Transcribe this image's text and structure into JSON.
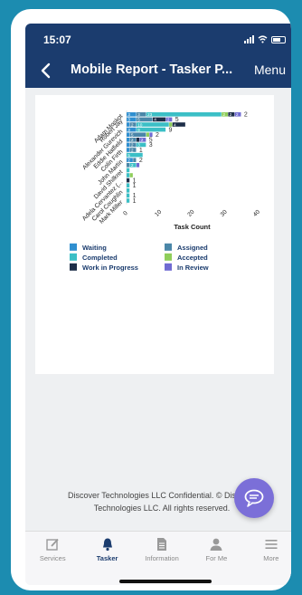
{
  "status_bar": {
    "time": "15:07"
  },
  "nav": {
    "back_icon": "chevron-left-icon",
    "title": "Mobile Report - Tasker P...",
    "menu_label": "Menu"
  },
  "colors": {
    "header": "#1b3c6e",
    "Waiting": "#2f8fd0",
    "Completed": "#3bbfc6",
    "Work in Progress": "#1d2e48",
    "Assigned": "#4a86a8",
    "Accepted": "#8fce5a",
    "In Review": "#6f6bd2"
  },
  "chart_data": {
    "type": "bar",
    "orientation": "horizontal",
    "stacked": true,
    "xlabel": "Task Count",
    "xlim": [
      0,
      40
    ],
    "xticks": [
      "0",
      "10",
      "20",
      "30",
      "40"
    ],
    "categories": [
      "Adam Moskot",
      "Robert Jay",
      "",
      "Alexander Gurevich",
      "",
      "Eddie Hatfield",
      "",
      "Colin Firth",
      "",
      "John Martin",
      "",
      "David Shilkret",
      "",
      "Adela Cervantez (...",
      "",
      "Carol Coughlin",
      "",
      "Mark Miller"
    ],
    "series": [
      {
        "name": "Waiting",
        "values": [
          3,
          3,
          1,
          3,
          1,
          1,
          1,
          1,
          0,
          2,
          0,
          0,
          0,
          0,
          0,
          0,
          0,
          0
        ]
      },
      {
        "name": "Assigned",
        "values": [
          3,
          5,
          2,
          0,
          5,
          2,
          2,
          2,
          0,
          1,
          1,
          0,
          0,
          0,
          0,
          0,
          0,
          0
        ]
      },
      {
        "name": "Completed",
        "values": [
          23,
          0,
          10,
          9,
          0,
          0,
          3,
          0,
          5,
          0,
          2,
          1,
          1,
          0,
          1,
          1,
          1,
          1
        ]
      },
      {
        "name": "Accepted",
        "values": [
          2,
          0,
          1,
          0,
          1,
          0,
          0,
          0,
          0,
          0,
          0,
          0,
          1,
          0,
          0,
          0,
          0,
          0
        ]
      },
      {
        "name": "Work in Progress",
        "values": [
          2,
          4,
          4,
          0,
          0,
          1,
          0,
          0,
          0,
          0,
          0,
          0,
          0,
          1,
          0,
          0,
          0,
          0
        ]
      },
      {
        "name": "In Review",
        "values": [
          2,
          2,
          0,
          0,
          1,
          2,
          0,
          0,
          0,
          0,
          1,
          0,
          0,
          0,
          0,
          0,
          0,
          0
        ]
      }
    ],
    "end_labels": [
      "2",
      "5",
      "",
      "9",
      "2",
      "5",
      "3",
      "1",
      "",
      "2",
      "",
      "",
      "",
      "1",
      "1",
      "",
      "1",
      "1"
    ],
    "legend_placement": "bottom"
  },
  "footer": {
    "line1": "Discover Technologies LLC Confidential. © Discover",
    "line2": "Technologies LLC. All rights reserved."
  },
  "chat_button": {
    "icon": "chat-bubble-icon"
  },
  "tabs": [
    {
      "label": "Services",
      "icon": "edit-icon"
    },
    {
      "label": "Tasker",
      "icon": "bell-icon",
      "active": true
    },
    {
      "label": "Information",
      "icon": "document-icon"
    },
    {
      "label": "For Me",
      "icon": "user-icon"
    },
    {
      "label": "More",
      "icon": "menu-icon"
    }
  ]
}
